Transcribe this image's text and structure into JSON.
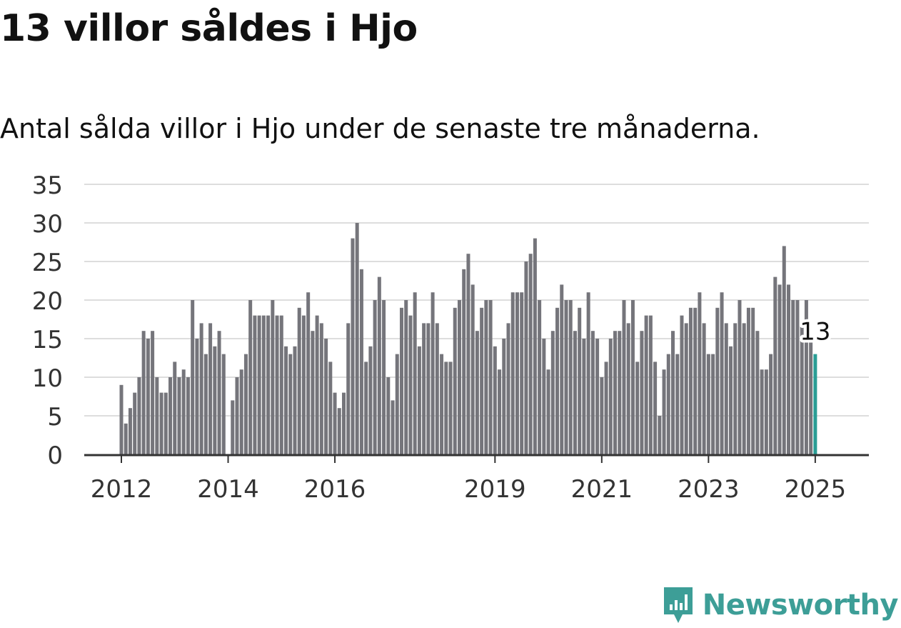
{
  "header": {
    "title": "13 villor såldes i Hjo",
    "subtitle": "Antal sålda villor i Hjo under de senaste tre månaderna."
  },
  "brand": {
    "name": "Newsworthy",
    "color": "#3d9e97"
  },
  "colors": {
    "bar": "#75757b",
    "highlight": "#2a9d95",
    "grid": "#dddddd",
    "axis": "#333333",
    "tick_text": "#333333"
  },
  "chart_data": {
    "type": "bar",
    "title": "13 villor såldes i Hjo",
    "subtitle": "Antal sålda villor i Hjo under de senaste tre månaderna.",
    "xlabel": "",
    "ylabel": "",
    "ylim": [
      0,
      35
    ],
    "yticks": [
      0,
      5,
      10,
      15,
      20,
      25,
      30,
      35
    ],
    "xticks": [
      {
        "label": "2012",
        "index": 0
      },
      {
        "label": "2014",
        "index": 24
      },
      {
        "label": "2016",
        "index": 48
      },
      {
        "label": "2019",
        "index": 84
      },
      {
        "label": "2021",
        "index": 108
      },
      {
        "label": "2023",
        "index": 132
      },
      {
        "label": "2025",
        "index": 156
      }
    ],
    "grid": true,
    "annotation": {
      "label": "13",
      "index": 156
    },
    "values": [
      9,
      4,
      6,
      8,
      10,
      16,
      15,
      16,
      10,
      8,
      8,
      10,
      12,
      10,
      11,
      10,
      20,
      15,
      17,
      13,
      17,
      14,
      16,
      13,
      0,
      7,
      10,
      11,
      13,
      20,
      18,
      18,
      18,
      18,
      20,
      18,
      18,
      14,
      13,
      14,
      19,
      18,
      21,
      16,
      18,
      17,
      15,
      12,
      8,
      6,
      8,
      17,
      28,
      30,
      24,
      12,
      14,
      20,
      23,
      20,
      10,
      7,
      13,
      19,
      20,
      18,
      21,
      14,
      17,
      17,
      21,
      17,
      13,
      12,
      12,
      19,
      20,
      24,
      26,
      22,
      16,
      19,
      20,
      20,
      14,
      11,
      15,
      17,
      21,
      21,
      21,
      25,
      26,
      28,
      20,
      15,
      11,
      16,
      19,
      22,
      20,
      20,
      16,
      19,
      15,
      21,
      16,
      15,
      10,
      12,
      15,
      16,
      16,
      20,
      17,
      20,
      12,
      16,
      18,
      18,
      12,
      5,
      11,
      13,
      16,
      13,
      18,
      17,
      19,
      19,
      21,
      17,
      13,
      13,
      19,
      21,
      17,
      14,
      17,
      20,
      17,
      19,
      19,
      16,
      11,
      11,
      13,
      23,
      22,
      27,
      22,
      20,
      20,
      17,
      20,
      15,
      13
    ]
  }
}
